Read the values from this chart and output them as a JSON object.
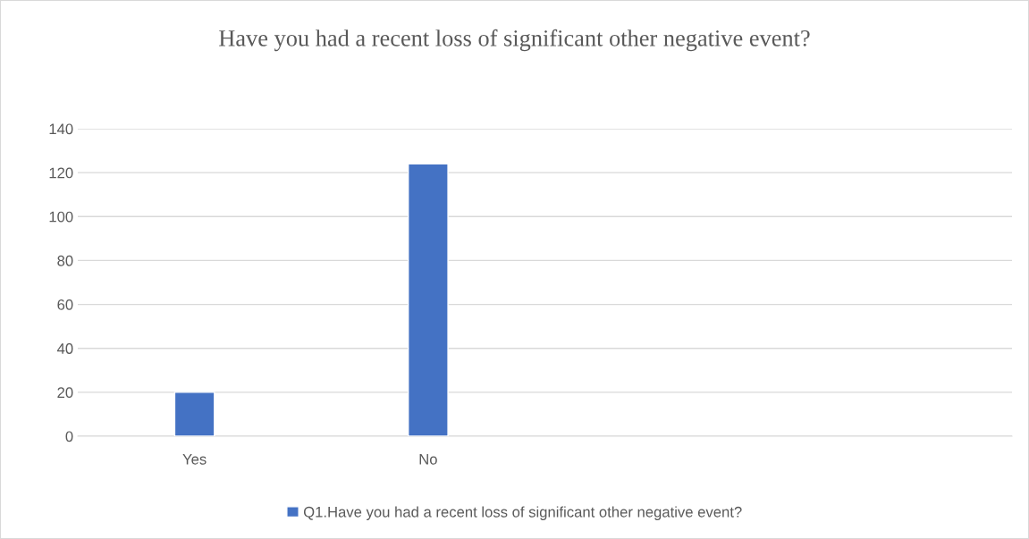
{
  "chart_data": {
    "type": "bar",
    "title": "Have you had a recent loss of significant other negative event?",
    "categories": [
      "Yes",
      "No",
      null,
      null
    ],
    "series": [
      {
        "name": "Q1.Have you had a recent loss of significant other negative event?",
        "color": "#4472c4",
        "values": [
          20,
          124,
          null,
          null
        ]
      }
    ],
    "ylim": [
      0,
      140
    ],
    "yticks": [
      0,
      20,
      40,
      60,
      80,
      100,
      120,
      140
    ],
    "grid": "y",
    "legend": "bottom"
  }
}
